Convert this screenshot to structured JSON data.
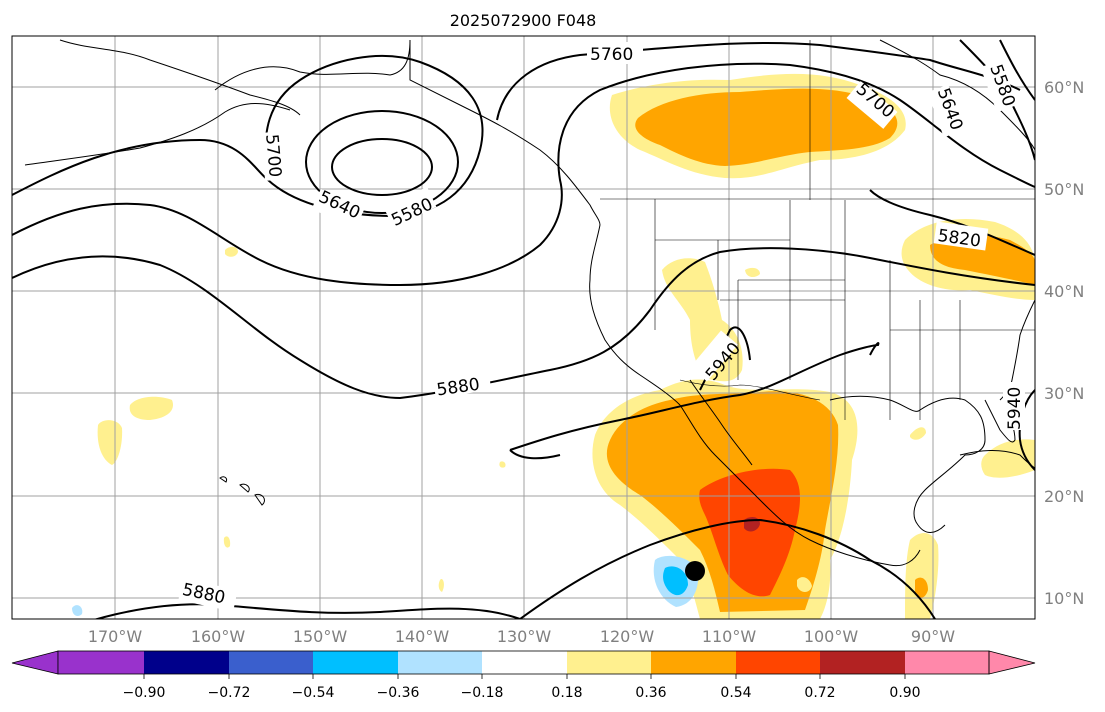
{
  "title": "2025072900 F048",
  "lon_labels": [
    "170°W",
    "160°W",
    "150°W",
    "140°W",
    "130°W",
    "120°W",
    "110°W",
    "100°W",
    "90°W"
  ],
  "lat_labels": [
    "60°N",
    "50°N",
    "40°N",
    "30°N",
    "20°N",
    "10°N"
  ],
  "contour_labels": [
    "5760",
    "5700",
    "5640",
    "5580",
    "5700",
    "5640",
    "5580",
    "5820",
    "5940",
    "5880",
    "5880",
    "5940"
  ],
  "colorbar": {
    "tick_labels": [
      "−0.90",
      "−0.72",
      "−0.54",
      "−0.36",
      "−0.18",
      "0.18",
      "0.36",
      "0.54",
      "0.72",
      "0.90"
    ],
    "levels": [
      -0.9,
      -0.72,
      -0.54,
      -0.36,
      -0.18,
      0.18,
      0.36,
      0.54,
      0.72,
      0.9
    ],
    "colors": [
      "#9932cc",
      "#00008b",
      "#3a5fcd",
      "#00bfff",
      "#b0e2ff",
      "#ffffff",
      "#fff08f",
      "#ffa500",
      "#ff4500",
      "#b22222",
      "#ff88aa"
    ]
  },
  "colors": {
    "contour": "#000000",
    "coastline": "#000000",
    "grid": "#a0a0a0",
    "axis_label": "#808080"
  },
  "marker": "storm-position-dot"
}
